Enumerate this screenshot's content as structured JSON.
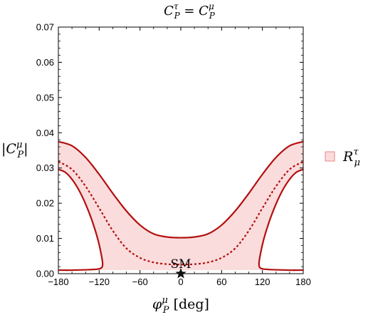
{
  "chart_data": {
    "type": "area",
    "title": {
      "lhs": "C",
      "lhs_sup": "τ",
      "lhs_sub": "P",
      "eq": " = ",
      "rhs": "C",
      "rhs_sup": "μ",
      "rhs_sub": "P"
    },
    "xlabel": {
      "sym": "φ",
      "sup": "μ",
      "sub": "P",
      "unit": " [deg]"
    },
    "ylabel": {
      "open": "|",
      "sym": "C",
      "sup": "μ",
      "sub": "P",
      "close": "|"
    },
    "xlim": [
      -180,
      180
    ],
    "ylim": [
      0,
      0.07
    ],
    "xticks": [
      "-180",
      "-120",
      "-60",
      "0",
      "60",
      "120",
      "180"
    ],
    "yticks": [
      "0.00",
      "0.01",
      "0.02",
      "0.03",
      "0.04",
      "0.05",
      "0.06",
      "0.07"
    ],
    "legend": {
      "placement": "right",
      "sym": "R",
      "sup": "τ",
      "sub": "μ"
    },
    "annotation": {
      "text": "SM",
      "x": 0,
      "y": 0
    },
    "fill_color": "#fbdcdc",
    "line_color": "#b30f0f",
    "series": [
      {
        "role": "outer-boundary",
        "style": "solid",
        "x": [
          -180,
          -160,
          -140,
          -120,
          -100,
          -80,
          -60,
          -40,
          -20,
          0,
          20,
          40,
          60,
          80,
          100,
          120,
          140,
          160,
          180
        ],
        "y": [
          0.0375,
          0.0363,
          0.033,
          0.0282,
          0.0228,
          0.0178,
          0.0138,
          0.0113,
          0.0104,
          0.0102,
          0.0104,
          0.0113,
          0.0138,
          0.0178,
          0.0228,
          0.0282,
          0.033,
          0.0363,
          0.0375
        ]
      },
      {
        "role": "central",
        "style": "dashed",
        "x": [
          -180,
          -160,
          -140,
          -120,
          -100,
          -80,
          -60,
          -40,
          -20,
          0,
          20,
          40,
          60,
          80,
          100,
          120,
          140,
          160,
          180
        ],
        "y": [
          0.0318,
          0.0296,
          0.0248,
          0.0186,
          0.0122,
          0.0072,
          0.0045,
          0.0032,
          0.0027,
          0.0026,
          0.0027,
          0.0032,
          0.0045,
          0.0072,
          0.0122,
          0.0186,
          0.0248,
          0.0296,
          0.0318
        ]
      },
      {
        "role": "inner-boundary-left",
        "style": "solid",
        "points": [
          [
            -180,
            0.0296
          ],
          [
            -170,
            0.0288
          ],
          [
            -160,
            0.0268
          ],
          [
            -150,
            0.0238
          ],
          [
            -140,
            0.0198
          ],
          [
            -130,
            0.0148
          ],
          [
            -122,
            0.0098
          ],
          [
            -117,
            0.0055
          ],
          [
            -115,
            0.003
          ],
          [
            -116,
            0.0018
          ],
          [
            -122,
            0.0013
          ],
          [
            -140,
            0.0011
          ],
          [
            -160,
            0.001
          ],
          [
            -180,
            0.001
          ]
        ]
      },
      {
        "role": "inner-boundary-right",
        "style": "solid",
        "points": [
          [
            180,
            0.0296
          ],
          [
            170,
            0.0288
          ],
          [
            160,
            0.0268
          ],
          [
            150,
            0.0238
          ],
          [
            140,
            0.0198
          ],
          [
            130,
            0.0148
          ],
          [
            122,
            0.0098
          ],
          [
            117,
            0.0055
          ],
          [
            115,
            0.003
          ],
          [
            116,
            0.0018
          ],
          [
            122,
            0.0013
          ],
          [
            140,
            0.0011
          ],
          [
            160,
            0.001
          ],
          [
            180,
            0.001
          ]
        ]
      }
    ]
  }
}
